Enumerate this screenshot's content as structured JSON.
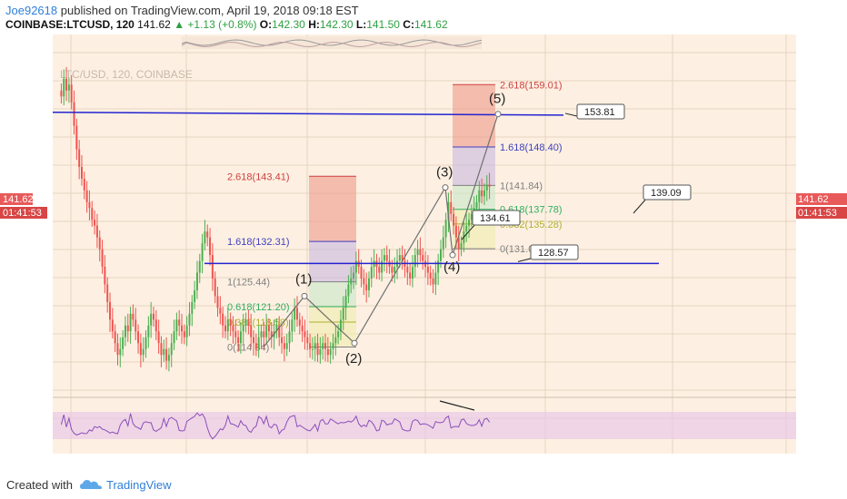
{
  "header": {
    "user": "Joe92618",
    "published": "published on TradingView.com, April 19, 2018 09:18 EST",
    "symbol": "COINBASE:LTCUSD, 120",
    "last": "141.62",
    "change": "▲ +1.13 (+0.8%)",
    "open_label": "O:",
    "open": "142.30",
    "high_label": "H:",
    "high": "142.30",
    "low_label": "L:",
    "low": "141.50",
    "close_label": "C:",
    "close": "141.62"
  },
  "chart": {
    "watermark": "LTC/USD, 120, COINBASE",
    "price_tag": "141.62",
    "countdown": "01:41:53",
    "right_price_tag": "141.62",
    "right_countdown": "01:41:53"
  },
  "chart_data": {
    "type": "candlestick",
    "symbol": "COINBASE:LTCUSD",
    "interval": "120",
    "y_range": [
      107,
      166
    ],
    "grid": true,
    "candles_close": [
      157,
      160,
      158,
      159,
      156,
      152,
      148,
      145,
      143,
      141,
      139,
      138,
      136,
      135,
      133,
      131,
      128,
      125,
      122,
      119,
      117,
      115,
      113,
      114,
      116,
      118,
      117,
      120,
      119,
      117,
      115,
      113,
      114,
      116,
      118,
      120,
      119,
      117,
      115,
      113,
      114,
      112,
      113,
      115,
      117,
      119,
      118,
      117,
      116,
      118,
      120,
      122,
      124,
      127,
      129,
      132,
      134,
      133,
      130,
      126,
      123,
      121,
      120,
      118,
      117,
      119,
      118,
      117,
      116,
      115,
      117,
      118,
      119,
      118,
      116,
      115,
      114,
      116,
      117,
      116,
      118,
      117,
      116,
      117,
      118,
      116,
      115,
      114,
      115,
      117,
      119,
      121,
      119,
      118,
      117,
      116,
      115,
      114,
      114,
      115,
      113,
      114,
      115,
      114,
      113,
      114,
      115,
      116,
      117,
      119,
      121,
      123,
      125,
      126,
      127,
      129,
      128,
      126,
      125,
      124,
      126,
      128,
      129,
      128,
      127,
      129,
      130,
      129,
      128,
      127,
      128,
      129,
      130,
      129,
      128,
      127,
      126,
      128,
      130,
      131,
      130,
      129,
      128,
      127,
      126,
      125,
      127,
      129,
      131,
      133,
      136,
      139,
      137,
      135,
      133,
      131,
      132,
      134,
      135,
      136,
      137,
      138,
      139,
      141,
      140,
      141,
      142,
      141.62
    ],
    "horizontal_lines": [
      {
        "price": 153.81,
        "label": "153.81"
      },
      {
        "price": 128.57,
        "label": "128.57"
      }
    ],
    "price_labels": [
      {
        "value": "139.09"
      },
      {
        "value": "134.61"
      }
    ],
    "waves": [
      {
        "label": "(1)",
        "price": 123.0
      },
      {
        "label": "(2)",
        "price": 115.0
      },
      {
        "label": "(3)",
        "price": 141.5
      },
      {
        "label": "(4)",
        "price": 130.0
      },
      {
        "label": "(5)",
        "price": 154.0
      }
    ],
    "fib_extension_1": [
      {
        "label": "2.618(143.41)",
        "price": 143.41
      },
      {
        "label": "1.618(132.31)",
        "price": 132.31
      },
      {
        "label": "1(125.44)",
        "price": 125.44
      },
      {
        "label": "0.618(121.20)",
        "price": 121.2
      },
      {
        "label": "0.382(118.58)",
        "price": 118.58
      },
      {
        "label": "0(114.34)",
        "price": 114.34
      }
    ],
    "fib_extension_2": [
      {
        "label": "2.618(159.01)",
        "price": 159.01
      },
      {
        "label": "1.618(148.40)",
        "price": 148.4
      },
      {
        "label": "1(141.84)",
        "price": 141.84
      },
      {
        "label": "0.618(137.78)",
        "price": 137.78
      },
      {
        "label": "0.382(135.28)",
        "price": 135.28
      },
      {
        "label": "0(131.08)",
        "price": 131.08
      }
    ]
  },
  "footer": {
    "created": "Created with",
    "brand": "TradingView"
  },
  "colors": {
    "background": "#fdf0e2",
    "up": "#4caf50",
    "down": "#ef5350",
    "level_line": "#2323d1",
    "price_tag": "#e85a5a",
    "countdown": "#d84545",
    "rsi_band": "#e8c9e8"
  }
}
